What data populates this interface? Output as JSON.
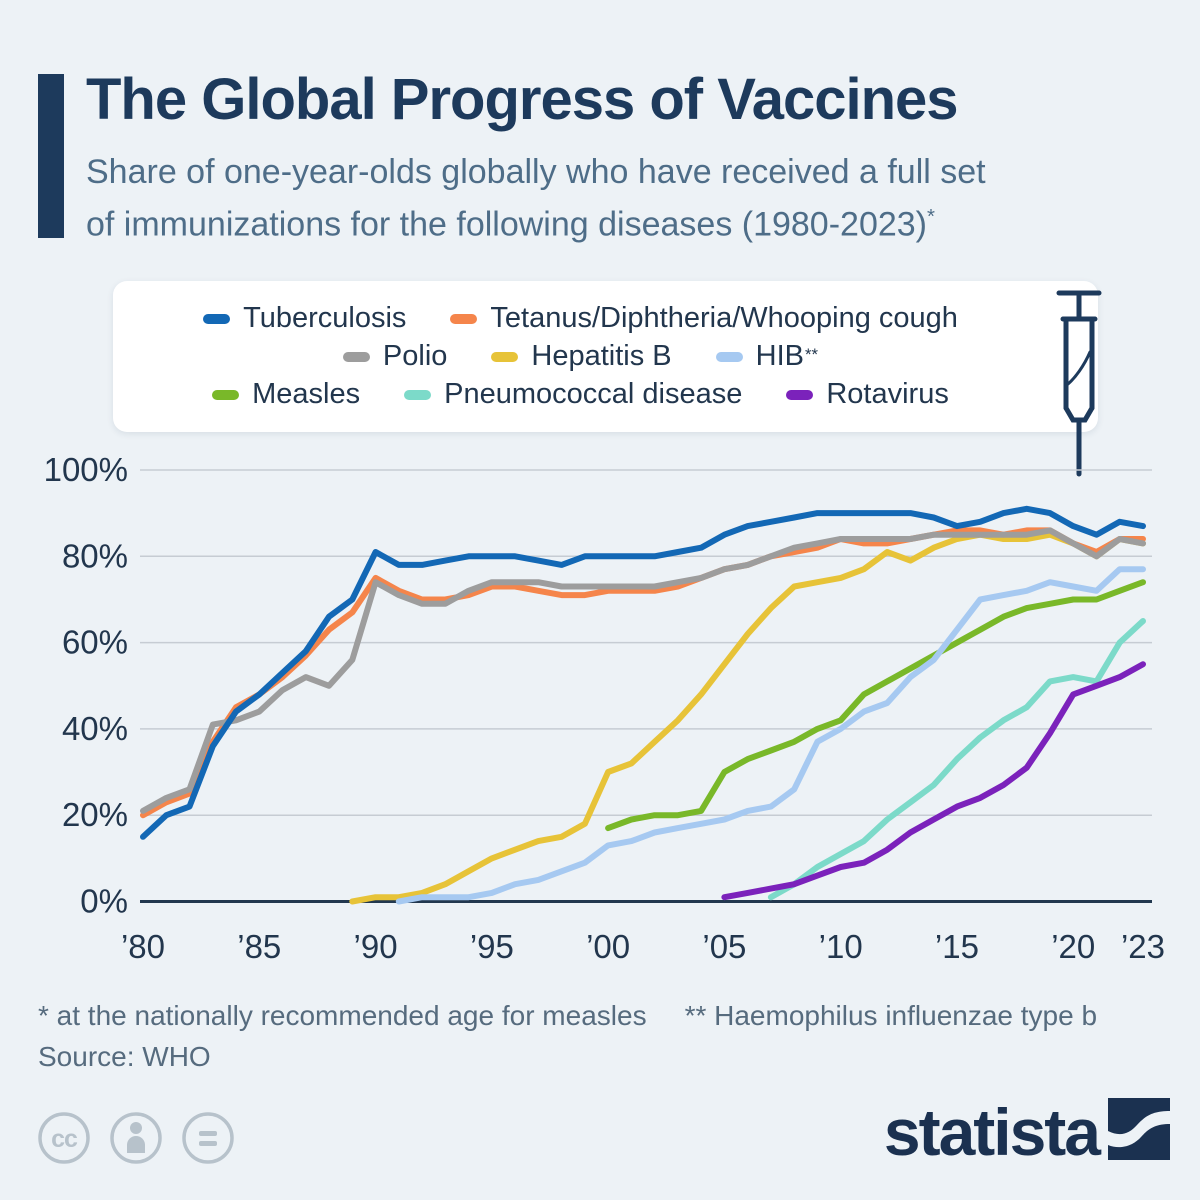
{
  "header": {
    "title": "The Global Progress of Vaccines",
    "subtitle_line1": "Share of one-year-olds globally who have received a full set",
    "subtitle_line2": "of immunizations for the following diseases (1980-2023)",
    "subtitle_mark": "*"
  },
  "footer": {
    "footnote_1": "* at the nationally recommended age for measles",
    "footnote_2": "** Haemophilus influenzae type b",
    "source": "Source: WHO",
    "brand": "statista",
    "license_icons": [
      "cc-icon",
      "attribution-icon",
      "no-derivatives-icon"
    ]
  },
  "colors": {
    "background": "#edf2f6",
    "navy": "#1d3a5c",
    "subtitle": "#4e6d88",
    "axis_text": "#22364d",
    "grid": "#c6ccd3",
    "axis_line": "#22384f",
    "footnote": "#566b7e",
    "icon_gray": "#b7c2cb",
    "brand_navy": "#1b3150",
    "legend_bg": "#ffffff"
  },
  "chart_data": {
    "type": "line",
    "title": "The Global Progress of Vaccines",
    "xlabel": "",
    "ylabel": "",
    "grid": true,
    "legend_position": "top",
    "x_range": [
      1980,
      2023
    ],
    "y_range": [
      0,
      100
    ],
    "yticks": [
      {
        "value": 0,
        "label": "0%"
      },
      {
        "value": 20,
        "label": "20%"
      },
      {
        "value": 40,
        "label": "40%"
      },
      {
        "value": 60,
        "label": "60%"
      },
      {
        "value": 80,
        "label": "80%"
      },
      {
        "value": 100,
        "label": "100%"
      }
    ],
    "xticks": [
      {
        "value": 1980,
        "label": "’80"
      },
      {
        "value": 1985,
        "label": "’85"
      },
      {
        "value": 1990,
        "label": "’90"
      },
      {
        "value": 1995,
        "label": "’95"
      },
      {
        "value": 2000,
        "label": "’00"
      },
      {
        "value": 2005,
        "label": "’05"
      },
      {
        "value": 2010,
        "label": "’10"
      },
      {
        "value": 2015,
        "label": "’15"
      },
      {
        "value": 2020,
        "label": "’20"
      },
      {
        "value": 2023,
        "label": "’23"
      }
    ],
    "legend_rows": [
      [
        0,
        1
      ],
      [
        2,
        3,
        4
      ],
      [
        5,
        6,
        7
      ]
    ],
    "draw_order": [
      3,
      1,
      2,
      5,
      4,
      6,
      7,
      0
    ],
    "series": [
      {
        "key": "tuberculosis",
        "name": "Tuberculosis",
        "color": "#1368b5",
        "start_year": 1980,
        "values": [
          15,
          20,
          22,
          36,
          44,
          48,
          53,
          58,
          66,
          70,
          81,
          78,
          78,
          79,
          80,
          80,
          80,
          79,
          78,
          80,
          80,
          80,
          80,
          81,
          82,
          85,
          87,
          88,
          89,
          90,
          90,
          90,
          90,
          90,
          89,
          87,
          88,
          90,
          91,
          90,
          87,
          85,
          88,
          87
        ]
      },
      {
        "key": "tetanus-diphtheria-whooping-cough",
        "name": "Tetanus/Diphtheria/Whooping cough",
        "color": "#f5854b",
        "start_year": 1980,
        "values": [
          20,
          23,
          25,
          37,
          45,
          48,
          52,
          57,
          63,
          67,
          75,
          72,
          70,
          70,
          71,
          73,
          73,
          72,
          71,
          71,
          72,
          72,
          72,
          73,
          75,
          77,
          78,
          80,
          81,
          82,
          84,
          83,
          83,
          84,
          85,
          86,
          86,
          85,
          86,
          86,
          83,
          81,
          84,
          84
        ]
      },
      {
        "key": "polio",
        "name": "Polio",
        "color": "#9d9d9d",
        "start_year": 1980,
        "values": [
          21,
          24,
          26,
          41,
          42,
          44,
          49,
          52,
          50,
          56,
          74,
          71,
          69,
          69,
          72,
          74,
          74,
          74,
          73,
          73,
          73,
          73,
          73,
          74,
          75,
          77,
          78,
          80,
          82,
          83,
          84,
          84,
          84,
          84,
          85,
          85,
          85,
          85,
          85,
          86,
          83,
          80,
          84,
          83
        ]
      },
      {
        "key": "hepatitis-b",
        "name": "Hepatitis B",
        "color": "#e7c338",
        "start_year": 1989,
        "values": [
          0,
          1,
          1,
          2,
          4,
          7,
          10,
          12,
          14,
          15,
          18,
          30,
          32,
          37,
          42,
          48,
          55,
          62,
          68,
          73,
          74,
          75,
          77,
          81,
          79,
          82,
          84,
          85,
          84,
          84,
          85,
          83,
          80,
          84,
          83
        ]
      },
      {
        "key": "hib",
        "name": "HIB",
        "legend_mark": "**",
        "color": "#a6c9f1",
        "start_year": 1991,
        "values": [
          0,
          1,
          1,
          1,
          2,
          4,
          5,
          7,
          9,
          13,
          14,
          16,
          17,
          18,
          19,
          21,
          22,
          26,
          37,
          40,
          44,
          46,
          52,
          56,
          63,
          70,
          71,
          72,
          74,
          73,
          72,
          77,
          77
        ]
      },
      {
        "key": "measles",
        "name": "Measles",
        "color": "#79b829",
        "start_year": 2000,
        "values": [
          17,
          19,
          20,
          20,
          21,
          30,
          33,
          35,
          37,
          40,
          42,
          48,
          51,
          54,
          57,
          60,
          63,
          66,
          68,
          69,
          70,
          70,
          72,
          74
        ]
      },
      {
        "key": "pneumococcal-disease",
        "name": "Pneumococcal disease",
        "color": "#7cdac9",
        "start_year": 2007,
        "values": [
          1,
          4,
          8,
          11,
          14,
          19,
          23,
          27,
          33,
          38,
          42,
          45,
          51,
          52,
          51,
          60,
          65
        ]
      },
      {
        "key": "rotavirus",
        "name": "Rotavirus",
        "color": "#7b22bb",
        "start_year": 2005,
        "values": [
          1,
          2,
          3,
          4,
          6,
          8,
          9,
          12,
          16,
          19,
          22,
          24,
          27,
          31,
          39,
          48,
          50,
          52,
          55
        ]
      }
    ]
  }
}
